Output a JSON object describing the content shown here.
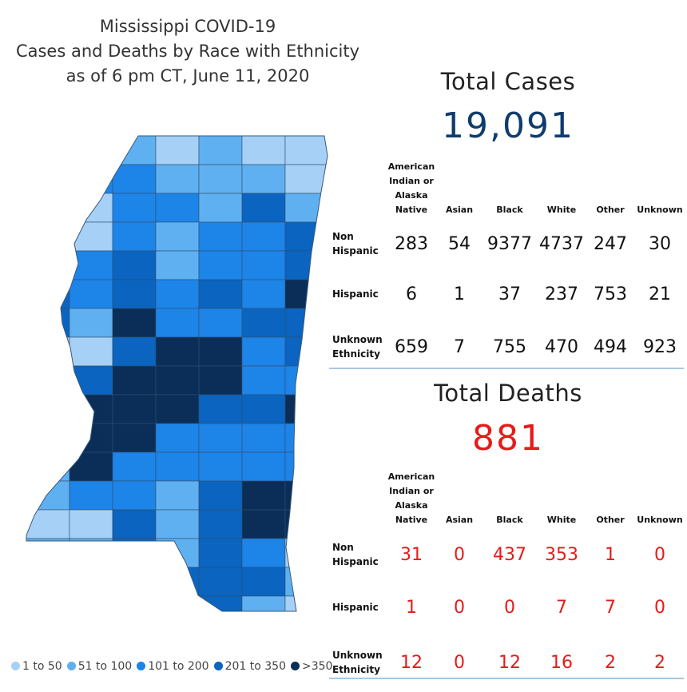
{
  "title": {
    "line1": "Mississippi COVID-19",
    "line2": "Cases and Deaths by Race with Ethnicity",
    "line3": "as of 6 pm CT, June 11, 2020"
  },
  "legend": [
    {
      "label": "1 to 50",
      "color": "#a6d0f5"
    },
    {
      "label": "51 to 100",
      "color": "#5fb0f0"
    },
    {
      "label": "101 to 200",
      "color": "#1d84e8"
    },
    {
      "label": "201 to 350",
      "color": "#0a64c0"
    },
    {
      "label": ">350",
      "color": "#0a2e58"
    }
  ],
  "map": {
    "no_data_color": "#c8c8c8"
  },
  "cases": {
    "label": "Total Cases",
    "total": "19,091",
    "columns": [
      "American Indian or Alaska Native",
      "Asian",
      "Black",
      "White",
      "Other",
      "Unknown"
    ],
    "rows": [
      {
        "label": "Non Hispanic",
        "values": [
          "283",
          "54",
          "9377",
          "4737",
          "247",
          "30"
        ]
      },
      {
        "label": "Hispanic",
        "values": [
          "6",
          "1",
          "37",
          "237",
          "753",
          "21"
        ]
      },
      {
        "label": "Unknown Ethnicity",
        "values": [
          "659",
          "7",
          "755",
          "470",
          "494",
          "923"
        ]
      }
    ]
  },
  "deaths": {
    "label": "Total Deaths",
    "total": "881",
    "columns": [
      "American Indian or Alaska Native",
      "Asian",
      "Black",
      "White",
      "Other",
      "Unknown"
    ],
    "rows": [
      {
        "label": "Non Hispanic",
        "values": [
          "31",
          "0",
          "437",
          "353",
          "1",
          "0"
        ]
      },
      {
        "label": "Hispanic",
        "values": [
          "1",
          "0",
          "0",
          "7",
          "7",
          "0"
        ]
      },
      {
        "label": "Unknown Ethnicity",
        "values": [
          "12",
          "0",
          "12",
          "16",
          "2",
          "2"
        ]
      }
    ]
  },
  "chart_data": [
    {
      "type": "table",
      "title": "Total Cases",
      "total": 19091,
      "columns": [
        "American Indian or Alaska Native",
        "Asian",
        "Black",
        "White",
        "Other",
        "Unknown"
      ],
      "rows": [
        "Non Hispanic",
        "Hispanic",
        "Unknown Ethnicity"
      ],
      "values": [
        [
          283,
          54,
          9377,
          4737,
          247,
          30
        ],
        [
          6,
          1,
          37,
          237,
          753,
          21
        ],
        [
          659,
          7,
          755,
          470,
          494,
          923
        ]
      ]
    },
    {
      "type": "table",
      "title": "Total Deaths",
      "total": 881,
      "columns": [
        "American Indian or Alaska Native",
        "Asian",
        "Black",
        "White",
        "Other",
        "Unknown"
      ],
      "rows": [
        "Non Hispanic",
        "Hispanic",
        "Unknown Ethnicity"
      ],
      "values": [
        [
          31,
          0,
          437,
          353,
          1,
          0
        ],
        [
          1,
          0,
          0,
          7,
          7,
          0
        ],
        [
          12,
          0,
          12,
          16,
          2,
          2
        ]
      ]
    }
  ]
}
